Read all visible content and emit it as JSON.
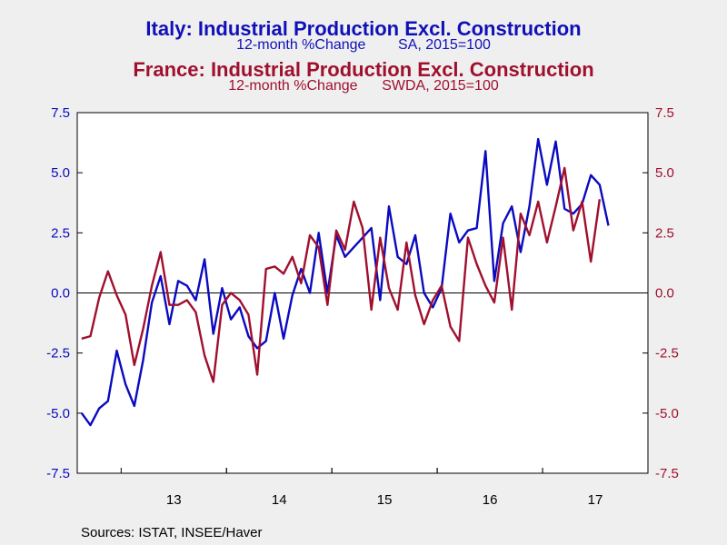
{
  "titles": {
    "italy_title": "Italy: Industrial Production Excl. Construction",
    "italy_subtitle": "12-month %Change        SA, 2015=100",
    "france_title": "France: Industrial Production Excl. Construction",
    "france_subtitle": "12-month %Change      SWDA, 2015=100"
  },
  "source": "Sources:  ISTAT, INSEE/Haver",
  "colors": {
    "italy": "#0a0ac0",
    "france": "#a0102e",
    "background": "#efefef",
    "plot_bg": "#ffffff",
    "axis": "#000000"
  },
  "chart_data": {
    "type": "line",
    "x": [
      "2012-08",
      "2012-09",
      "2012-10",
      "2012-11",
      "2012-12",
      "2013-01",
      "2013-02",
      "2013-03",
      "2013-04",
      "2013-05",
      "2013-06",
      "2013-07",
      "2013-08",
      "2013-09",
      "2013-10",
      "2013-11",
      "2013-12",
      "2014-01",
      "2014-02",
      "2014-03",
      "2014-04",
      "2014-05",
      "2014-06",
      "2014-07",
      "2014-08",
      "2014-09",
      "2014-10",
      "2014-11",
      "2014-12",
      "2015-01",
      "2015-02",
      "2015-03",
      "2015-04",
      "2015-05",
      "2015-06",
      "2015-07",
      "2015-08",
      "2015-09",
      "2015-10",
      "2015-11",
      "2015-12",
      "2016-01",
      "2016-02",
      "2016-03",
      "2016-04",
      "2016-05",
      "2016-06",
      "2016-07",
      "2016-08",
      "2016-09",
      "2016-10",
      "2016-11",
      "2016-12",
      "2017-01",
      "2017-02",
      "2017-03",
      "2017-04",
      "2017-05",
      "2017-06",
      "2017-07",
      "2017-08",
      "2017-09",
      "2017-10",
      "2017-11",
      "2017-12"
    ],
    "x_tick_labels": [
      "13",
      "14",
      "15",
      "16",
      "17"
    ],
    "series": [
      {
        "name": "Italy",
        "axis": "left",
        "values": [
          -5.0,
          -5.5,
          -4.8,
          -4.5,
          -2.4,
          -3.8,
          -4.7,
          -2.8,
          -0.4,
          0.7,
          -1.3,
          0.5,
          0.3,
          -0.3,
          1.4,
          -1.7,
          0.2,
          -1.1,
          -0.6,
          -1.8,
          -2.3,
          -2.0,
          0.0,
          -1.9,
          -0.1,
          1.0,
          0.0,
          2.5,
          0.0,
          2.4,
          1.5,
          1.9,
          2.3,
          2.7,
          -0.3,
          3.6,
          1.5,
          1.2,
          2.4,
          0.0,
          -0.6,
          0.2,
          3.3,
          2.1,
          2.6,
          2.7,
          5.9,
          0.5,
          2.9,
          3.6,
          1.7,
          3.6,
          6.4,
          4.5,
          6.3,
          3.5,
          3.3,
          3.7,
          4.9,
          4.5,
          2.8,
          null,
          null,
          null,
          null
        ]
      },
      {
        "name": "France",
        "axis": "right",
        "values": [
          -1.9,
          -1.8,
          -0.2,
          0.9,
          -0.1,
          -0.9,
          -3.0,
          -1.5,
          0.3,
          1.7,
          -0.5,
          -0.5,
          -0.3,
          -0.8,
          -2.6,
          -3.7,
          -0.5,
          0.0,
          -0.3,
          -0.9,
          -3.4,
          1.0,
          1.1,
          0.8,
          1.5,
          0.4,
          2.4,
          1.9,
          -0.5,
          2.6,
          1.8,
          3.8,
          2.7,
          -0.7,
          2.3,
          0.2,
          -0.7,
          2.1,
          -0.1,
          -1.3,
          -0.3,
          0.3,
          -1.4,
          -2.0,
          2.3,
          1.2,
          0.3,
          -0.4,
          2.3,
          -0.7,
          3.3,
          2.4,
          3.8,
          2.1,
          3.6,
          5.2,
          2.6,
          3.8,
          1.3,
          3.9,
          null,
          null,
          null,
          null,
          null
        ]
      }
    ],
    "ylim_left": [
      -7.5,
      7.5
    ],
    "ylim_right": [
      -7.5,
      7.5
    ],
    "y_ticks": [
      7.5,
      5.0,
      2.5,
      0.0,
      -2.5,
      -5.0,
      -7.5
    ],
    "y_tick_labels": [
      "7.5",
      "5.0",
      "2.5",
      "0.0",
      "-2.5",
      "-5.0",
      "-7.5"
    ],
    "zero_line": true,
    "grid": false,
    "legend": "none"
  }
}
